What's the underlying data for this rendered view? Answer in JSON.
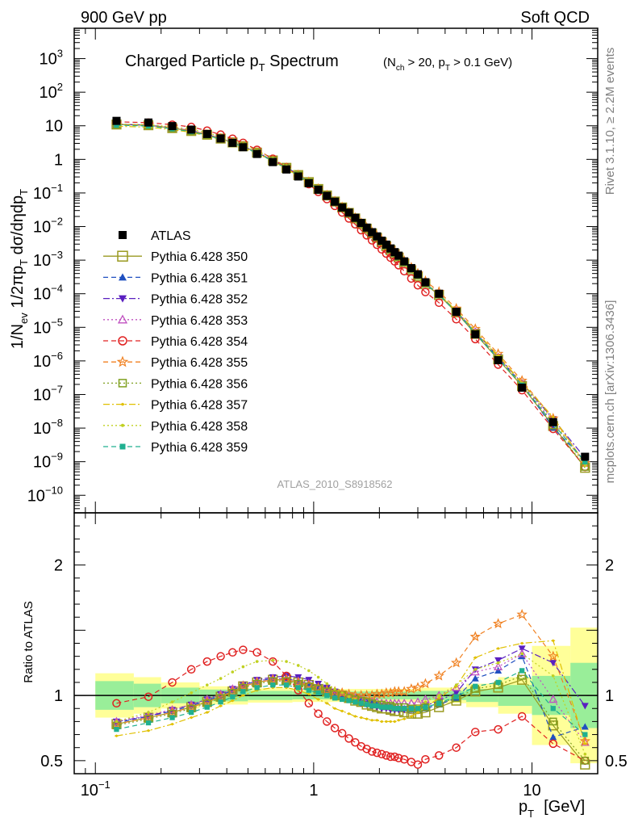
{
  "header": {
    "left": "900 GeV pp",
    "right": "Soft QCD"
  },
  "side_labels": {
    "rivet": "Rivet 3.1.10, ≥ 2.2M events",
    "mcplots": "mcplots.cern.ch [arXiv:1306.3436]"
  },
  "chart_data": [
    {
      "type": "line",
      "panel": "main",
      "title": "Charged Particle p",
      "title_sub": "T",
      "title_rest": " Spectrum",
      "title_cut": "(N",
      "title_cut_sub": "ch",
      "title_cut_mid": " > 20, p",
      "title_cut_sub2": "T",
      "title_cut_end": " > 0.1 GeV)",
      "ylabel": "1/N",
      "ylabel_sub": "ev",
      "ylabel_mid": " 1/2πp",
      "ylabel_sub2": "T",
      "ylabel_end": " dσ/dηdp",
      "ylabel_sub3": "T",
      "analysis_id": "ATLAS_2010_S8918562",
      "x_scale": "log",
      "y_scale": "log",
      "xlim": [
        0.08,
        20
      ],
      "ylim": [
        3e-11,
        8000
      ],
      "yticks": [
        {
          "v": 1e-10,
          "t": "10",
          "e": "−10"
        },
        {
          "v": 1e-09,
          "t": "10",
          "e": "−9"
        },
        {
          "v": 1e-08,
          "t": "10",
          "e": "−8"
        },
        {
          "v": 1e-07,
          "t": "10",
          "e": "−7"
        },
        {
          "v": 1e-06,
          "t": "10",
          "e": "−6"
        },
        {
          "v": 1e-05,
          "t": "10",
          "e": "−5"
        },
        {
          "v": 0.0001,
          "t": "10",
          "e": "−4"
        },
        {
          "v": 0.001,
          "t": "10",
          "e": "−3"
        },
        {
          "v": 0.01,
          "t": "10",
          "e": "−2"
        },
        {
          "v": 0.1,
          "t": "10",
          "e": "−1"
        },
        {
          "v": 1,
          "t": "1",
          "e": ""
        },
        {
          "v": 10,
          "t": "10",
          "e": ""
        },
        {
          "v": 100,
          "t": "10",
          "e": "2"
        },
        {
          "v": 1000,
          "t": "10",
          "e": "3"
        }
      ],
      "legend_position": "middle-left",
      "x": [
        0.125,
        0.175,
        0.225,
        0.275,
        0.325,
        0.375,
        0.425,
        0.475,
        0.55,
        0.65,
        0.75,
        0.85,
        0.95,
        1.05,
        1.15,
        1.25,
        1.35,
        1.45,
        1.55,
        1.65,
        1.75,
        1.85,
        1.95,
        2.05,
        2.15,
        2.25,
        2.35,
        2.45,
        2.6,
        2.8,
        3.0,
        3.25,
        3.75,
        4.5,
        5.5,
        7.0,
        9.0,
        12.5,
        17.5
      ],
      "atlas": [
        14,
        12.5,
        9.8,
        7.7,
        5.7,
        4.2,
        3.1,
        2.3,
        1.45,
        0.83,
        0.5,
        0.31,
        0.195,
        0.125,
        0.082,
        0.055,
        0.037,
        0.026,
        0.0182,
        0.0128,
        0.0093,
        0.0068,
        0.0051,
        0.0038,
        0.0029,
        0.00223,
        0.00173,
        0.00136,
        0.00092,
        0.00058,
        0.00038,
        0.00022,
        0.0001,
        2.9e-05,
        6.2e-06,
        1.05e-06,
        1.6e-07,
        1.5e-08,
        1.4e-09
      ],
      "series": [
        {
          "name": "ATLAS",
          "color": "#000000",
          "marker": "square-filled",
          "dash": "none",
          "ratio": []
        },
        {
          "name": "Pythia 6.428 350",
          "color": "#9a9a20",
          "marker": "square-open-big",
          "dash": "solid",
          "ratio": [
            0.78,
            0.83,
            0.87,
            0.91,
            0.95,
            0.99,
            1.03,
            1.07,
            1.1,
            1.12,
            1.12,
            1.1,
            1.08,
            1.05,
            1.03,
            1.01,
            1.0,
            0.98,
            0.96,
            0.95,
            0.93,
            0.92,
            0.91,
            0.9,
            0.9,
            0.89,
            0.88,
            0.88,
            0.87,
            0.86,
            0.86,
            0.87,
            0.91,
            0.96,
            1.03,
            1.06,
            1.12,
            0.77,
            0.47
          ]
        },
        {
          "name": "Pythia 6.428 351",
          "color": "#2050c0",
          "marker": "triangle-up",
          "dash": "dashed",
          "ratio": [
            0.79,
            0.84,
            0.88,
            0.92,
            0.96,
            1.0,
            1.04,
            1.08,
            1.11,
            1.13,
            1.13,
            1.11,
            1.09,
            1.06,
            1.04,
            1.02,
            1.0,
            0.99,
            0.97,
            0.96,
            0.95,
            0.94,
            0.93,
            0.92,
            0.91,
            0.91,
            0.9,
            0.9,
            0.9,
            0.89,
            0.89,
            0.9,
            0.93,
            0.98,
            1.13,
            1.19,
            1.3,
            0.68,
            0.76
          ]
        },
        {
          "name": "Pythia 6.428 352",
          "color": "#5a20c0",
          "marker": "triangle-down",
          "dash": "dashdot",
          "ratio": [
            0.8,
            0.84,
            0.89,
            0.93,
            0.97,
            1.01,
            1.05,
            1.08,
            1.12,
            1.14,
            1.15,
            1.14,
            1.12,
            1.09,
            1.06,
            1.03,
            1.0,
            0.98,
            0.96,
            0.94,
            0.93,
            0.92,
            0.91,
            0.9,
            0.9,
            0.89,
            0.89,
            0.89,
            0.89,
            0.89,
            0.9,
            0.92,
            0.96,
            1.02,
            1.2,
            1.27,
            1.36,
            1.25,
            0.92
          ]
        },
        {
          "name": "Pythia 6.428 353",
          "color": "#c050c0",
          "marker": "triangle-open",
          "dash": "dotted",
          "ratio": [
            0.8,
            0.85,
            0.89,
            0.93,
            0.97,
            1.01,
            1.05,
            1.08,
            1.11,
            1.13,
            1.13,
            1.11,
            1.09,
            1.06,
            1.04,
            1.02,
            1.0,
            0.99,
            0.98,
            0.97,
            0.96,
            0.95,
            0.95,
            0.94,
            0.94,
            0.94,
            0.94,
            0.94,
            0.94,
            0.94,
            0.95,
            0.97,
            1.0,
            1.06,
            1.18,
            1.22,
            1.32,
            0.97,
            0.64
          ]
        },
        {
          "name": "Pythia 6.428 354",
          "color": "#e02020",
          "marker": "circle-open",
          "dash": "dashed",
          "ratio": [
            0.94,
            0.99,
            1.1,
            1.2,
            1.26,
            1.3,
            1.33,
            1.35,
            1.33,
            1.26,
            1.15,
            1.04,
            0.94,
            0.86,
            0.8,
            0.75,
            0.71,
            0.67,
            0.64,
            0.61,
            0.59,
            0.57,
            0.56,
            0.55,
            0.54,
            0.53,
            0.53,
            0.52,
            0.51,
            0.49,
            0.47,
            0.51,
            0.54,
            0.6,
            0.72,
            0.74,
            0.84,
            0.63,
            0.5
          ]
        },
        {
          "name": "Pythia 6.428 355",
          "color": "#f08020",
          "marker": "star",
          "dash": "dashed",
          "ratio": [
            0.78,
            0.83,
            0.87,
            0.91,
            0.95,
            0.99,
            1.03,
            1.07,
            1.1,
            1.12,
            1.12,
            1.1,
            1.08,
            1.06,
            1.04,
            1.03,
            1.02,
            1.01,
            1.0,
            1.0,
            1.0,
            1.0,
            1.01,
            1.01,
            1.02,
            1.02,
            1.03,
            1.03,
            1.03,
            1.05,
            1.06,
            1.09,
            1.15,
            1.25,
            1.45,
            1.55,
            1.62,
            1.3,
            0.65
          ]
        },
        {
          "name": "Pythia 6.428 356",
          "color": "#80a020",
          "marker": "square-open",
          "dash": "dotted",
          "ratio": [
            0.77,
            0.82,
            0.86,
            0.9,
            0.94,
            0.98,
            1.02,
            1.06,
            1.09,
            1.11,
            1.11,
            1.09,
            1.07,
            1.05,
            1.03,
            1.01,
            1.0,
            0.98,
            0.97,
            0.96,
            0.95,
            0.94,
            0.93,
            0.93,
            0.92,
            0.92,
            0.91,
            0.91,
            0.91,
            0.9,
            0.9,
            0.91,
            0.94,
            0.98,
            1.05,
            1.08,
            1.15,
            0.8,
            0.5
          ]
        },
        {
          "name": "Pythia 6.428 357",
          "color": "#e0c000",
          "marker": "dash-diamond",
          "dash": "dashdot",
          "ratio": [
            0.69,
            0.73,
            0.78,
            0.83,
            0.87,
            0.92,
            0.96,
            1.0,
            1.04,
            1.06,
            1.06,
            1.04,
            1.01,
            0.97,
            0.94,
            0.9,
            0.88,
            0.86,
            0.84,
            0.83,
            0.82,
            0.81,
            0.81,
            0.8,
            0.8,
            0.8,
            0.8,
            0.81,
            0.82,
            0.84,
            0.87,
            0.91,
            0.98,
            1.07,
            1.29,
            1.36,
            1.4,
            1.42,
            0.63
          ]
        },
        {
          "name": "Pythia 6.428 358",
          "color": "#c0d020",
          "marker": "dot",
          "dash": "dotted",
          "ratio": [
            0.8,
            0.87,
            0.95,
            1.02,
            1.08,
            1.13,
            1.18,
            1.22,
            1.26,
            1.27,
            1.26,
            1.23,
            1.19,
            1.14,
            1.09,
            1.05,
            1.02,
            0.99,
            0.97,
            0.95,
            0.94,
            0.93,
            0.92,
            0.91,
            0.91,
            0.9,
            0.9,
            0.9,
            0.9,
            0.91,
            0.92,
            0.95,
            1.0,
            1.08,
            1.2,
            1.25,
            1.32,
            1.15,
            0.55
          ]
        },
        {
          "name": "Pythia 6.428 359",
          "color": "#20b090",
          "marker": "square-filled-small",
          "dash": "dashed",
          "ratio": [
            0.74,
            0.79,
            0.83,
            0.87,
            0.91,
            0.95,
            0.99,
            1.03,
            1.06,
            1.08,
            1.08,
            1.06,
            1.04,
            1.02,
            1.0,
            0.98,
            0.97,
            0.96,
            0.95,
            0.94,
            0.93,
            0.92,
            0.92,
            0.91,
            0.91,
            0.91,
            0.9,
            0.9,
            0.9,
            0.9,
            0.9,
            0.91,
            0.94,
            0.99,
            1.07,
            1.1,
            1.19,
            0.9,
            0.7
          ]
        }
      ]
    },
    {
      "type": "line",
      "panel": "ratio",
      "ylabel": "Ratio to ATLAS",
      "xlabel": "p",
      "xlabel_sub": "T",
      "xlabel_unit": "[GeV]",
      "x_scale": "log",
      "xlim": [
        0.08,
        20
      ],
      "ylim": [
        0.4,
        2.4
      ],
      "yticks": [
        {
          "v": 0.5,
          "t": "0.5"
        },
        {
          "v": 1,
          "t": "1"
        },
        {
          "v": 2,
          "t": "2"
        }
      ],
      "xticks": [
        {
          "v": 0.1,
          "t": "10",
          "e": "−1"
        },
        {
          "v": 1,
          "t": "1",
          "e": ""
        },
        {
          "v": 10,
          "t": "10",
          "e": ""
        }
      ],
      "band_edges": [
        0.1,
        0.15,
        0.2,
        0.3,
        0.5,
        0.8,
        1.2,
        2,
        3,
        5,
        7,
        10,
        15,
        20
      ],
      "band_inner": [
        0.11,
        0.09,
        0.06,
        0.045,
        0.035,
        0.03,
        0.03,
        0.03,
        0.035,
        0.05,
        0.08,
        0.15,
        0.25
      ],
      "band_outer": [
        0.17,
        0.14,
        0.1,
        0.07,
        0.055,
        0.05,
        0.05,
        0.05,
        0.06,
        0.09,
        0.14,
        0.38,
        0.52
      ]
    }
  ]
}
